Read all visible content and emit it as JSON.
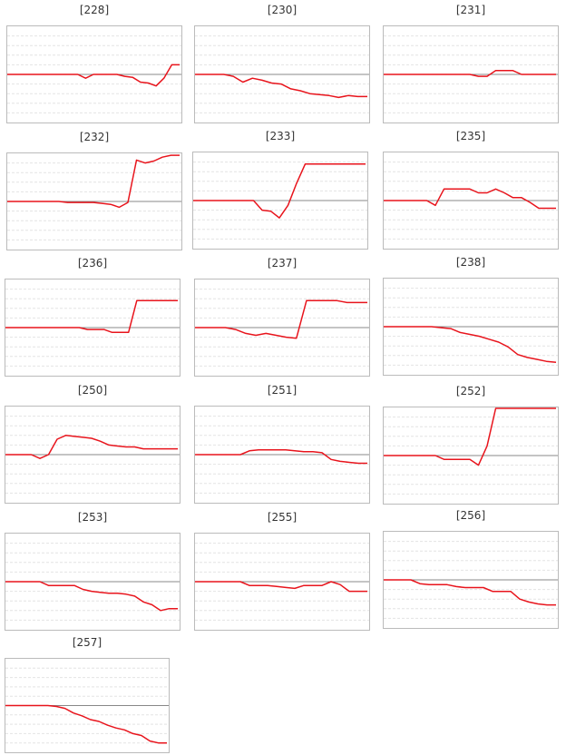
{
  "colors": {
    "series": "#e8141c",
    "baseline": "#888888",
    "grid": "#e4e4e4",
    "frame": "#bbbbbb"
  },
  "chart_data": [
    {
      "type": "line",
      "title": "[228]",
      "ylim": [
        -5,
        5
      ],
      "grid": true,
      "values": [
        0,
        0,
        0,
        0,
        0,
        0,
        0,
        0,
        0,
        0,
        -0.4,
        0,
        0,
        0,
        0,
        -0.2,
        -0.3,
        -0.8,
        -0.9,
        -1.2,
        -0.4,
        1.0,
        1.0
      ]
    },
    {
      "type": "line",
      "title": "[230]",
      "ylim": [
        -5,
        5
      ],
      "grid": true,
      "values": [
        0,
        0,
        0,
        0,
        -0.2,
        -0.8,
        -0.4,
        -0.6,
        -0.9,
        -1.0,
        -1.5,
        -1.7,
        -2.0,
        -2.1,
        -2.2,
        -2.4,
        -2.2,
        -2.3,
        -2.3
      ]
    },
    {
      "type": "line",
      "title": "[231]",
      "ylim": [
        -5,
        5
      ],
      "grid": true,
      "values": [
        0,
        0,
        0,
        0,
        0,
        0,
        0,
        0,
        0,
        0,
        0,
        -0.2,
        -0.2,
        0.4,
        0.4,
        0.4,
        0,
        0,
        0,
        0,
        0
      ]
    },
    {
      "type": "line",
      "title": "[232]",
      "ylim": [
        -5,
        5
      ],
      "grid": true,
      "values": [
        0,
        0,
        0,
        0,
        0,
        0,
        0,
        -0.1,
        -0.1,
        -0.1,
        -0.1,
        -0.2,
        -0.3,
        -0.6,
        -0.1,
        4.3,
        4.0,
        4.2,
        4.6,
        4.8,
        4.8
      ]
    },
    {
      "type": "line",
      "title": "[233]",
      "ylim": [
        -5,
        5
      ],
      "grid": true,
      "values": [
        0,
        0,
        0,
        0,
        0,
        0,
        0,
        0,
        -1.0,
        -1.1,
        -1.8,
        -0.5,
        1.8,
        3.8,
        3.8,
        3.8,
        3.8,
        3.8,
        3.8,
        3.8,
        3.8
      ]
    },
    {
      "type": "line",
      "title": "[235]",
      "ylim": [
        -5,
        5
      ],
      "grid": true,
      "values": [
        0,
        0,
        0,
        0,
        0,
        0,
        -0.5,
        1.2,
        1.2,
        1.2,
        1.2,
        0.8,
        0.8,
        1.2,
        0.8,
        0.3,
        0.3,
        -0.2,
        -0.8,
        -0.8,
        -0.8
      ]
    },
    {
      "type": "line",
      "title": "[236]",
      "ylim": [
        -5,
        5
      ],
      "grid": true,
      "values": [
        0,
        0,
        0,
        0,
        0,
        0,
        0,
        0,
        0,
        0,
        -0.2,
        -0.2,
        -0.2,
        -0.5,
        -0.5,
        -0.5,
        2.8,
        2.8,
        2.8,
        2.8,
        2.8,
        2.8
      ]
    },
    {
      "type": "line",
      "title": "[237]",
      "ylim": [
        -5,
        5
      ],
      "grid": true,
      "values": [
        0,
        0,
        0,
        0,
        -0.2,
        -0.6,
        -0.8,
        -0.6,
        -0.8,
        -1.0,
        -1.1,
        2.8,
        2.8,
        2.8,
        2.8,
        2.6,
        2.6,
        2.6
      ]
    },
    {
      "type": "line",
      "title": "[238]",
      "ylim": [
        -5,
        5
      ],
      "grid": true,
      "values": [
        0,
        0,
        0,
        0,
        0,
        0,
        -0.1,
        -0.2,
        -0.6,
        -0.8,
        -1.0,
        -1.3,
        -1.6,
        -2.1,
        -2.9,
        -3.2,
        -3.4,
        -3.6,
        -3.7
      ]
    },
    {
      "type": "line",
      "title": "[250]",
      "ylim": [
        -5,
        5
      ],
      "grid": true,
      "values": [
        0,
        0,
        0,
        0,
        -0.4,
        0,
        1.6,
        2.0,
        1.9,
        1.8,
        1.7,
        1.4,
        1.0,
        0.9,
        0.8,
        0.8,
        0.6,
        0.6,
        0.6,
        0.6,
        0.6
      ]
    },
    {
      "type": "line",
      "title": "[251]",
      "ylim": [
        -5,
        5
      ],
      "grid": true,
      "values": [
        0,
        0,
        0,
        0,
        0,
        0,
        0.4,
        0.5,
        0.5,
        0.5,
        0.5,
        0.4,
        0.3,
        0.3,
        0.2,
        -0.5,
        -0.7,
        -0.8,
        -0.9,
        -0.9
      ]
    },
    {
      "type": "line",
      "title": "[252]",
      "ylim": [
        -5,
        5
      ],
      "grid": true,
      "values": [
        0,
        0,
        0,
        0,
        0,
        0,
        0,
        -0.4,
        -0.4,
        -0.4,
        -0.4,
        -1.0,
        1.0,
        5.0,
        5.0,
        5.0,
        5.0,
        5.0,
        5.0,
        5.0,
        5.0
      ]
    },
    {
      "type": "line",
      "title": "[253]",
      "ylim": [
        -5,
        5
      ],
      "grid": true,
      "values": [
        0,
        0,
        0,
        0,
        0,
        -0.4,
        -0.4,
        -0.4,
        -0.4,
        -0.8,
        -1.0,
        -1.1,
        -1.2,
        -1.2,
        -1.3,
        -1.5,
        -2.1,
        -2.4,
        -3.0,
        -2.8,
        -2.8
      ]
    },
    {
      "type": "line",
      "title": "[255]",
      "ylim": [
        -5,
        5
      ],
      "grid": true,
      "values": [
        0,
        0,
        0,
        0,
        0,
        0,
        -0.4,
        -0.4,
        -0.4,
        -0.5,
        -0.6,
        -0.7,
        -0.4,
        -0.4,
        -0.4,
        0,
        -0.3,
        -1.0,
        -1.0,
        -1.0
      ]
    },
    {
      "type": "line",
      "title": "[256]",
      "ylim": [
        -5,
        5
      ],
      "grid": true,
      "values": [
        0,
        0,
        0,
        0,
        -0.4,
        -0.5,
        -0.5,
        -0.5,
        -0.7,
        -0.8,
        -0.8,
        -0.8,
        -1.2,
        -1.2,
        -1.2,
        -2.0,
        -2.3,
        -2.5,
        -2.6,
        -2.6
      ]
    },
    {
      "type": "line",
      "title": "[257]",
      "ylim": [
        -5,
        5
      ],
      "grid": true,
      "values": [
        0,
        0,
        0,
        0,
        0,
        0,
        -0.1,
        -0.3,
        -0.8,
        -1.1,
        -1.5,
        -1.7,
        -2.1,
        -2.4,
        -2.6,
        -3.0,
        -3.2,
        -3.8,
        -4.0,
        -4.0
      ]
    }
  ]
}
